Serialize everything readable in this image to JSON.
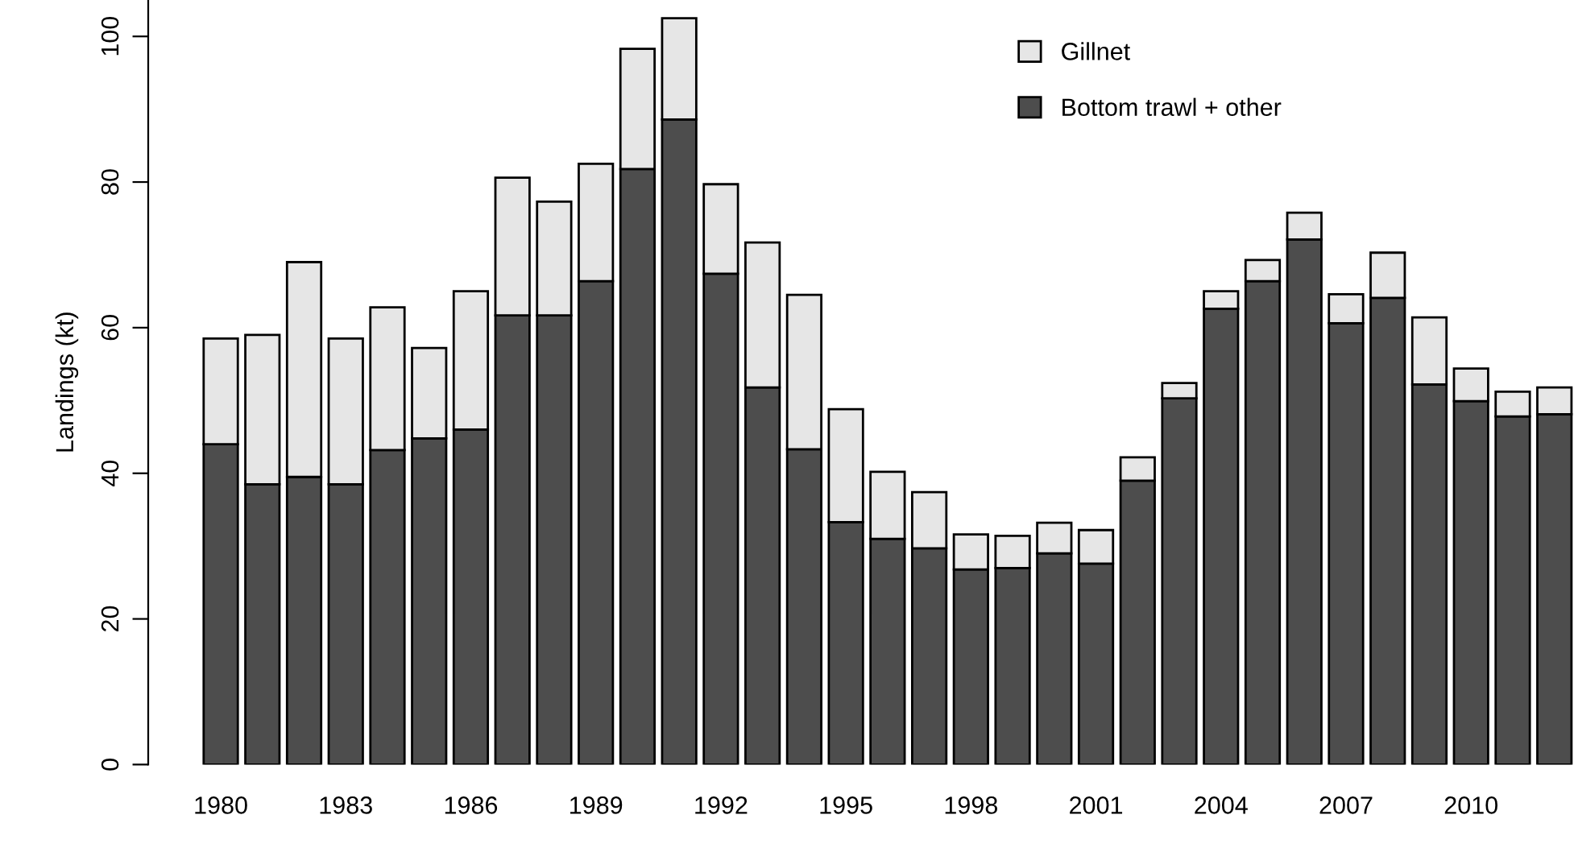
{
  "chart_data": {
    "type": "bar",
    "stacked": true,
    "ylabel": "Landings (kt)",
    "categories": [
      "1980",
      null,
      null,
      "1983",
      null,
      null,
      "1986",
      null,
      null,
      "1989",
      null,
      null,
      "1992",
      null,
      null,
      "1995",
      null,
      null,
      "1998",
      null,
      null,
      "2001",
      null,
      null,
      "2004",
      null,
      null,
      "2007",
      null,
      null,
      "2010",
      null,
      null
    ],
    "series": [
      {
        "name": "Bottom trawl + other",
        "color": "#4d4d4d",
        "values": [
          44,
          38.5,
          39.5,
          38.5,
          43.2,
          44.8,
          46,
          61.7,
          61.7,
          66.4,
          81.8,
          88.6,
          67.4,
          51.8,
          43.3,
          33.3,
          31,
          29.7,
          26.8,
          27,
          29,
          27.6,
          39,
          50.3,
          62.6,
          66.4,
          72.1,
          60.6,
          64.1,
          52.2,
          49.9,
          47.8,
          48.1
        ]
      },
      {
        "name": "Gillnet",
        "color": "#e6e6e6",
        "values": [
          14.5,
          20.5,
          29.5,
          20,
          19.6,
          12.4,
          19,
          18.9,
          15.6,
          16.1,
          16.5,
          13.9,
          12.3,
          19.9,
          21.2,
          15.5,
          9.2,
          7.7,
          4.8,
          4.4,
          4.2,
          4.6,
          3.2,
          2.1,
          2.4,
          2.9,
          3.7,
          4,
          6.2,
          9.2,
          4.5,
          3.4,
          3.7
        ]
      }
    ],
    "ylim": [
      0,
      105
    ],
    "yticks": [
      0,
      20,
      40,
      60,
      80,
      100
    ],
    "grid": false,
    "legend": "top right"
  }
}
